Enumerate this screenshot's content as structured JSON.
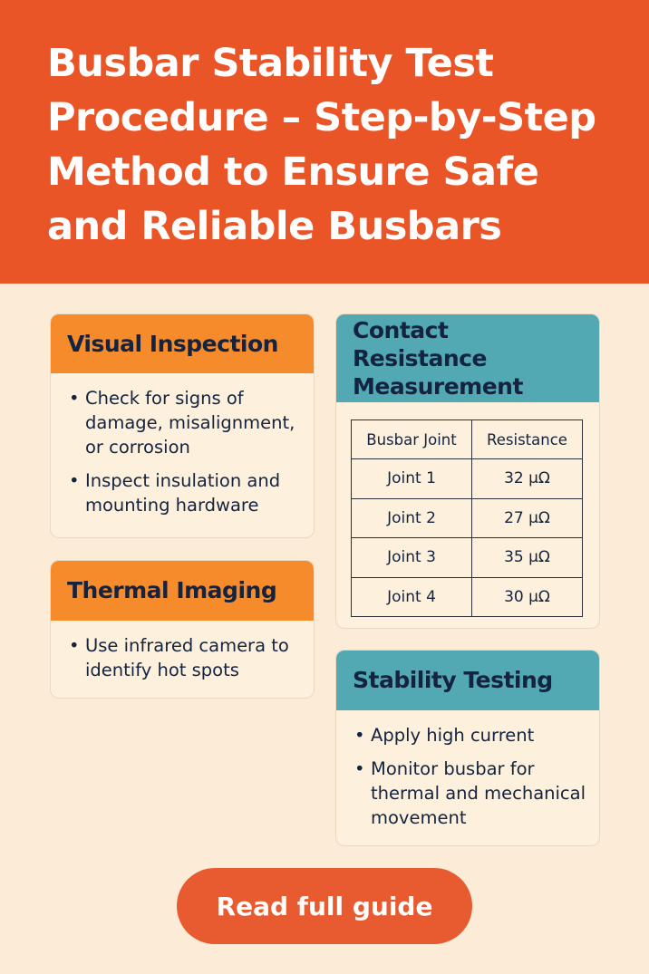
{
  "title": "Busbar Stability Test Procedure – Step-by-Step Method to Ensure Safe and Reliable Busbars",
  "colors": {
    "header": "#ea5528",
    "background": "#fcebd6",
    "orange_card": "#f58b2a",
    "teal_card": "#52a9b4",
    "button": "#e85a30",
    "text": "#14233f"
  },
  "visual": {
    "title": "Visual Inspection",
    "items": [
      "Check for signs of damage, misalignment, or corrosion",
      "Inspect insulation and mounting hardware"
    ]
  },
  "thermal": {
    "title": "Thermal Imaging",
    "items": [
      "Use infrared camera to identify hot spots"
    ]
  },
  "contact": {
    "title": "Contact Resistance Measurement",
    "headers": [
      "Busbar Joint",
      "Resistance"
    ],
    "rows": [
      [
        "Joint 1",
        "32 μΩ"
      ],
      [
        "Joint 2",
        "27 μΩ"
      ],
      [
        "Joint 3",
        "35 μΩ"
      ],
      [
        "Joint 4",
        "30 μΩ"
      ]
    ]
  },
  "stability": {
    "title": "Stability Testing",
    "items": [
      "Apply high current",
      "Monitor busbar for thermal and mechanical movement"
    ]
  },
  "button": "Read full guide"
}
